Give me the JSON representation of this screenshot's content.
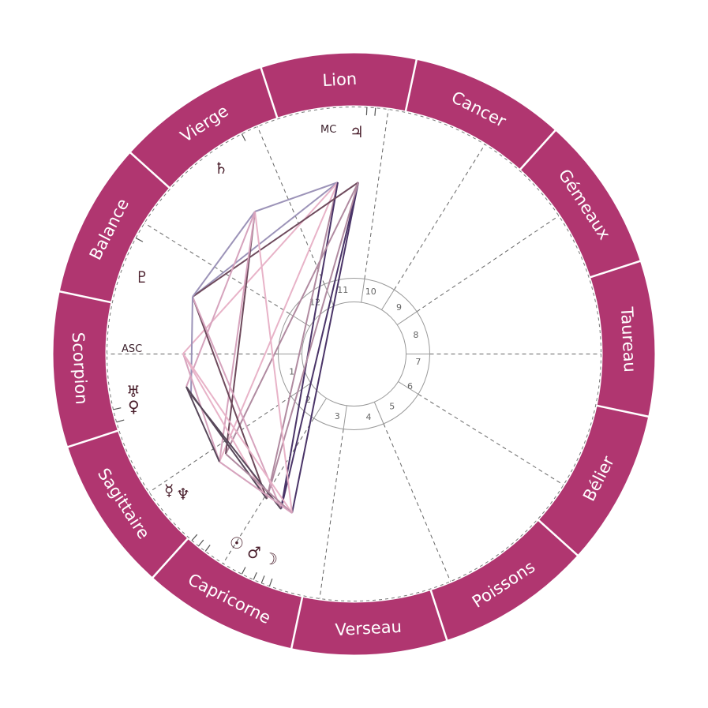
{
  "colors": {
    "ring": "#b03670",
    "ring_divider": "#ffffff",
    "glyph": "#4a1f2c",
    "house_line": "#666666",
    "aspects": [
      "#9c93b8",
      "#e8b3c8",
      "#6e4a5c",
      "#b08aa0",
      "#4a3468",
      "#d6a3bd",
      "#58485a"
    ]
  },
  "signs": [
    {
      "name": "Lion"
    },
    {
      "name": "Cancer"
    },
    {
      "name": "Gémeaux"
    },
    {
      "name": "Taureau"
    },
    {
      "name": "Bélier"
    },
    {
      "name": "Poissons"
    },
    {
      "name": "Verseau"
    },
    {
      "name": "Capricorne"
    },
    {
      "name": "Sagittaire"
    },
    {
      "name": "Scorpion"
    },
    {
      "name": "Balance"
    },
    {
      "name": "Vierge"
    }
  ],
  "houses": [
    "1",
    "2",
    "3",
    "4",
    "5",
    "6",
    "7",
    "8",
    "9",
    "10",
    "11",
    "12"
  ],
  "angles": {
    "asc": "ASC",
    "mc": "MC"
  },
  "planets": [
    {
      "name": "jupiter",
      "glyph": "♃"
    },
    {
      "name": "saturn",
      "glyph": "♄"
    },
    {
      "name": "pluto",
      "glyph": "♇"
    },
    {
      "name": "uranus",
      "glyph": "♅"
    },
    {
      "name": "venus",
      "glyph": "♀"
    },
    {
      "name": "mercury",
      "glyph": "☿"
    },
    {
      "name": "neptune",
      "glyph": "♆"
    },
    {
      "name": "sun",
      "glyph": "☉"
    },
    {
      "name": "mars",
      "glyph": "♂"
    },
    {
      "name": "moon",
      "glyph": "☽"
    }
  ]
}
